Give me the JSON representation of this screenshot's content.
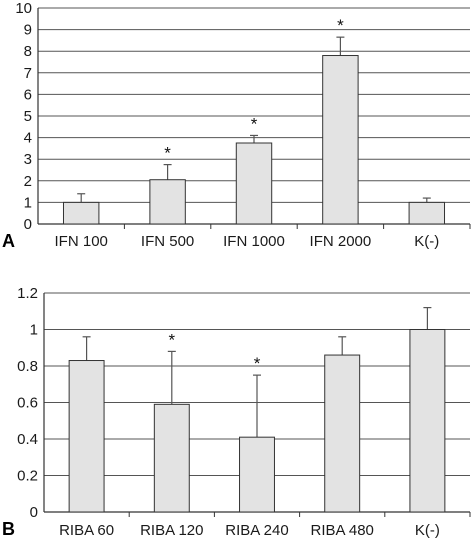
{
  "colors": {
    "bar_fill": "#e3e3e3",
    "bar_stroke": "#333333",
    "grid": "#555555",
    "axis": "#333333",
    "error_bar": "#555555"
  },
  "chart_data": [
    {
      "type": "bar",
      "panel_label": "A",
      "categories": [
        "IFN 100",
        "IFN 500",
        "IFN 1000",
        "IFN 2000",
        "K(-)"
      ],
      "values": [
        1.0,
        2.05,
        3.75,
        7.8,
        1.0
      ],
      "error": [
        0.4,
        0.7,
        0.35,
        0.85,
        0.2
      ],
      "significant": [
        false,
        true,
        true,
        true,
        false
      ],
      "significance_marker": "*",
      "ylim": [
        0,
        10
      ],
      "yticks": [
        0,
        1,
        2,
        3,
        4,
        5,
        6,
        7,
        8,
        9,
        10
      ],
      "ytick_labels": [
        "0",
        "1",
        "2",
        "3",
        "4",
        "5",
        "6",
        "7",
        "8",
        "9",
        "10"
      ],
      "grid": true,
      "title": "",
      "xlabel": "",
      "ylabel": ""
    },
    {
      "type": "bar",
      "panel_label": "B",
      "categories": [
        "RIBA 60",
        "RIBA 120",
        "RIBA 240",
        "RIBA 480",
        "K(-)"
      ],
      "values": [
        0.83,
        0.59,
        0.41,
        0.86,
        1.0
      ],
      "error": [
        0.13,
        0.29,
        0.34,
        0.1,
        0.12
      ],
      "significant": [
        false,
        true,
        true,
        false,
        false
      ],
      "significance_marker": "*",
      "ylim": [
        0,
        1.2
      ],
      "yticks": [
        0,
        0.2,
        0.4,
        0.6,
        0.8,
        1.0,
        1.2
      ],
      "ytick_labels": [
        "0",
        "0.2",
        "0.4",
        "0.6",
        "0.8",
        "1",
        "1.2"
      ],
      "grid": true,
      "title": "",
      "xlabel": "",
      "ylabel": ""
    }
  ]
}
